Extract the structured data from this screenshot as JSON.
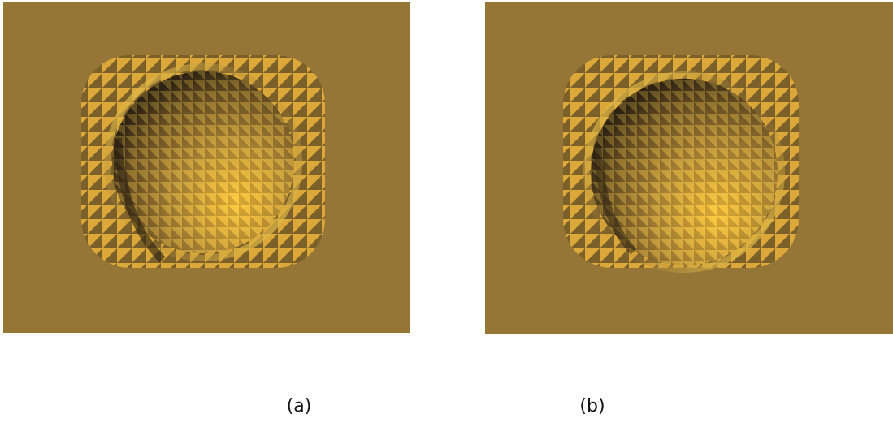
{
  "panels": [
    {
      "caption": "(a)"
    },
    {
      "caption": "(b)"
    }
  ]
}
